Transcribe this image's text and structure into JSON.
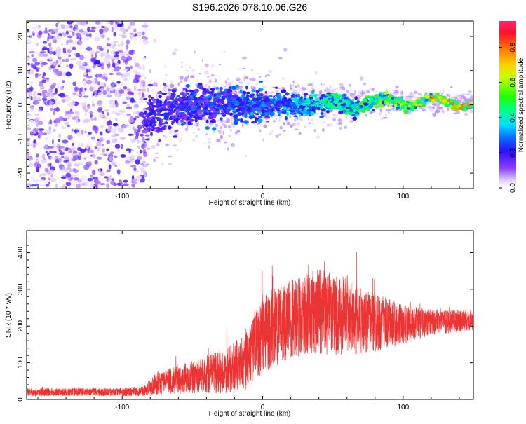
{
  "title": "S196.2026.078.10.06.G26",
  "chart_data": [
    {
      "type": "heatmap",
      "title": "S196.2026.078.10.06.G26",
      "xlabel": "Height of straight line (km)",
      "ylabel": "Frequency (Hz)",
      "xlim": [
        -168,
        150
      ],
      "ylim": [
        -24.5,
        24.5
      ],
      "x_ticks": [
        "-100",
        "0",
        "100"
      ],
      "x_tick_values": [
        -100,
        0,
        100
      ],
      "y_ticks": [
        "-20",
        "-10",
        "0",
        "10",
        "20"
      ],
      "y_tick_values": [
        -20,
        -10,
        0,
        10,
        20
      ],
      "colorbar": {
        "label": "Normalized spectral amplitude",
        "range": [
          0,
          0.95
        ],
        "ticks": [
          "0.0",
          "0.2",
          "0.4",
          "0.6",
          "0.8"
        ],
        "tick_values": [
          0.0,
          0.2,
          0.4,
          0.6,
          0.8
        ]
      },
      "ridge": {
        "description_free_profile": [
          {
            "x": -85,
            "freq": -3,
            "spread": 6,
            "amp": 0.25
          },
          {
            "x": -50,
            "freq": 0,
            "spread": 4,
            "amp": 0.3
          },
          {
            "x": 0,
            "freq": 0,
            "spread": 3,
            "amp": 0.35
          },
          {
            "x": 50,
            "freq": 0,
            "spread": 2,
            "amp": 0.5
          },
          {
            "x": 100,
            "freq": 1,
            "spread": 1,
            "amp": 0.7
          },
          {
            "x": 150,
            "freq": 0.5,
            "spread": 0.8,
            "amp": 0.9
          }
        ]
      }
    },
    {
      "type": "line",
      "xlabel": "Height of straight line (km)",
      "ylabel": "SNR (10 * v/v)",
      "xlim": [
        -168,
        150
      ],
      "ylim": [
        0,
        460
      ],
      "x_ticks": [
        "-100",
        "0",
        "100"
      ],
      "x_tick_values": [
        -100,
        0,
        100
      ],
      "y_ticks": [
        "0",
        "100",
        "200",
        "300",
        "400"
      ],
      "y_tick_values": [
        0,
        100,
        200,
        300,
        400
      ],
      "color": "#ee3333",
      "envelope": {
        "x": [
          -168,
          -100,
          -85,
          -75,
          -50,
          -25,
          -10,
          0,
          20,
          40,
          60,
          80,
          100,
          120,
          150
        ],
        "mean": [
          20,
          20,
          22,
          45,
          60,
          80,
          110,
          180,
          220,
          240,
          225,
          210,
          205,
          210,
          215
        ],
        "spread": [
          12,
          12,
          15,
          35,
          50,
          70,
          90,
          120,
          120,
          130,
          120,
          90,
          60,
          40,
          30
        ]
      }
    }
  ]
}
